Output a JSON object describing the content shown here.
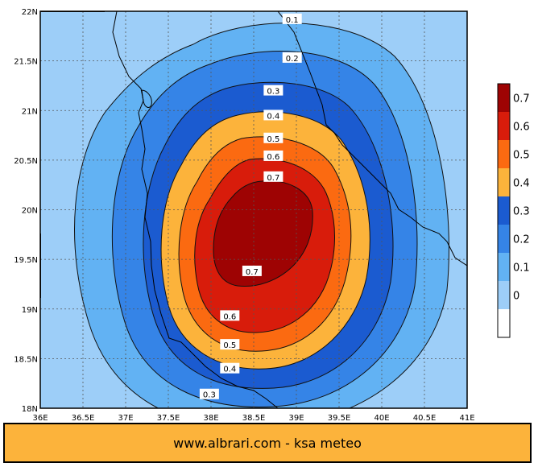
{
  "colors": {
    "frame": "#000000",
    "footer_bg": "#fcb33b",
    "grid": "#555555",
    "contour_line": "#111111",
    "coastline": "#000000"
  },
  "chart_data": {
    "type": "heatmap",
    "subtype": "filled-contour-map",
    "title": "",
    "x_axis": {
      "ticks": [
        "36E",
        "36.5E",
        "37E",
        "37.5E",
        "38E",
        "38.5E",
        "39E",
        "39.5E",
        "40E",
        "40.5E",
        "41E"
      ],
      "range": [
        36,
        41
      ]
    },
    "y_axis": {
      "ticks": [
        "18N",
        "18.5N",
        "19N",
        "19.5N",
        "20N",
        "20.5N",
        "21N",
        "21.5N",
        "22N"
      ],
      "range": [
        18,
        22
      ]
    },
    "grid": true,
    "legend": {
      "position": "right",
      "levels": [
        {
          "label": "0",
          "color": "#9dcef8"
        },
        {
          "label": "0.1",
          "color": "#62b2f3"
        },
        {
          "label": "0.2",
          "color": "#3584e7"
        },
        {
          "label": "0.3",
          "color": "#1b5bd0"
        },
        {
          "label": "0.4",
          "color": "#fcb33b"
        },
        {
          "label": "0.5",
          "color": "#fb6a11"
        },
        {
          "label": "0.6",
          "color": "#d81c0b"
        },
        {
          "label": "0.7",
          "color": "#9e0303"
        }
      ],
      "bottom_swatch_color": "#ffffff"
    },
    "contour_labels": [
      {
        "text": "0.1",
        "lon": 38.95,
        "lat": 21.92
      },
      {
        "text": "0.2",
        "lon": 38.95,
        "lat": 21.53
      },
      {
        "text": "0.3",
        "lon": 38.73,
        "lat": 21.2
      },
      {
        "text": "0.4",
        "lon": 38.73,
        "lat": 20.95
      },
      {
        "text": "0.5",
        "lon": 38.73,
        "lat": 20.72
      },
      {
        "text": "0.6",
        "lon": 38.73,
        "lat": 20.54
      },
      {
        "text": "0.7",
        "lon": 38.73,
        "lat": 20.33
      },
      {
        "text": "0.7",
        "lon": 38.48,
        "lat": 19.38
      },
      {
        "text": "0.6",
        "lon": 38.22,
        "lat": 18.93
      },
      {
        "text": "0.5",
        "lon": 38.22,
        "lat": 18.64
      },
      {
        "text": "0.4",
        "lon": 38.22,
        "lat": 18.4
      },
      {
        "text": "0.3",
        "lon": 37.98,
        "lat": 18.14
      }
    ]
  },
  "footer": {
    "text": "www.albrari.com - ksa meteo"
  }
}
